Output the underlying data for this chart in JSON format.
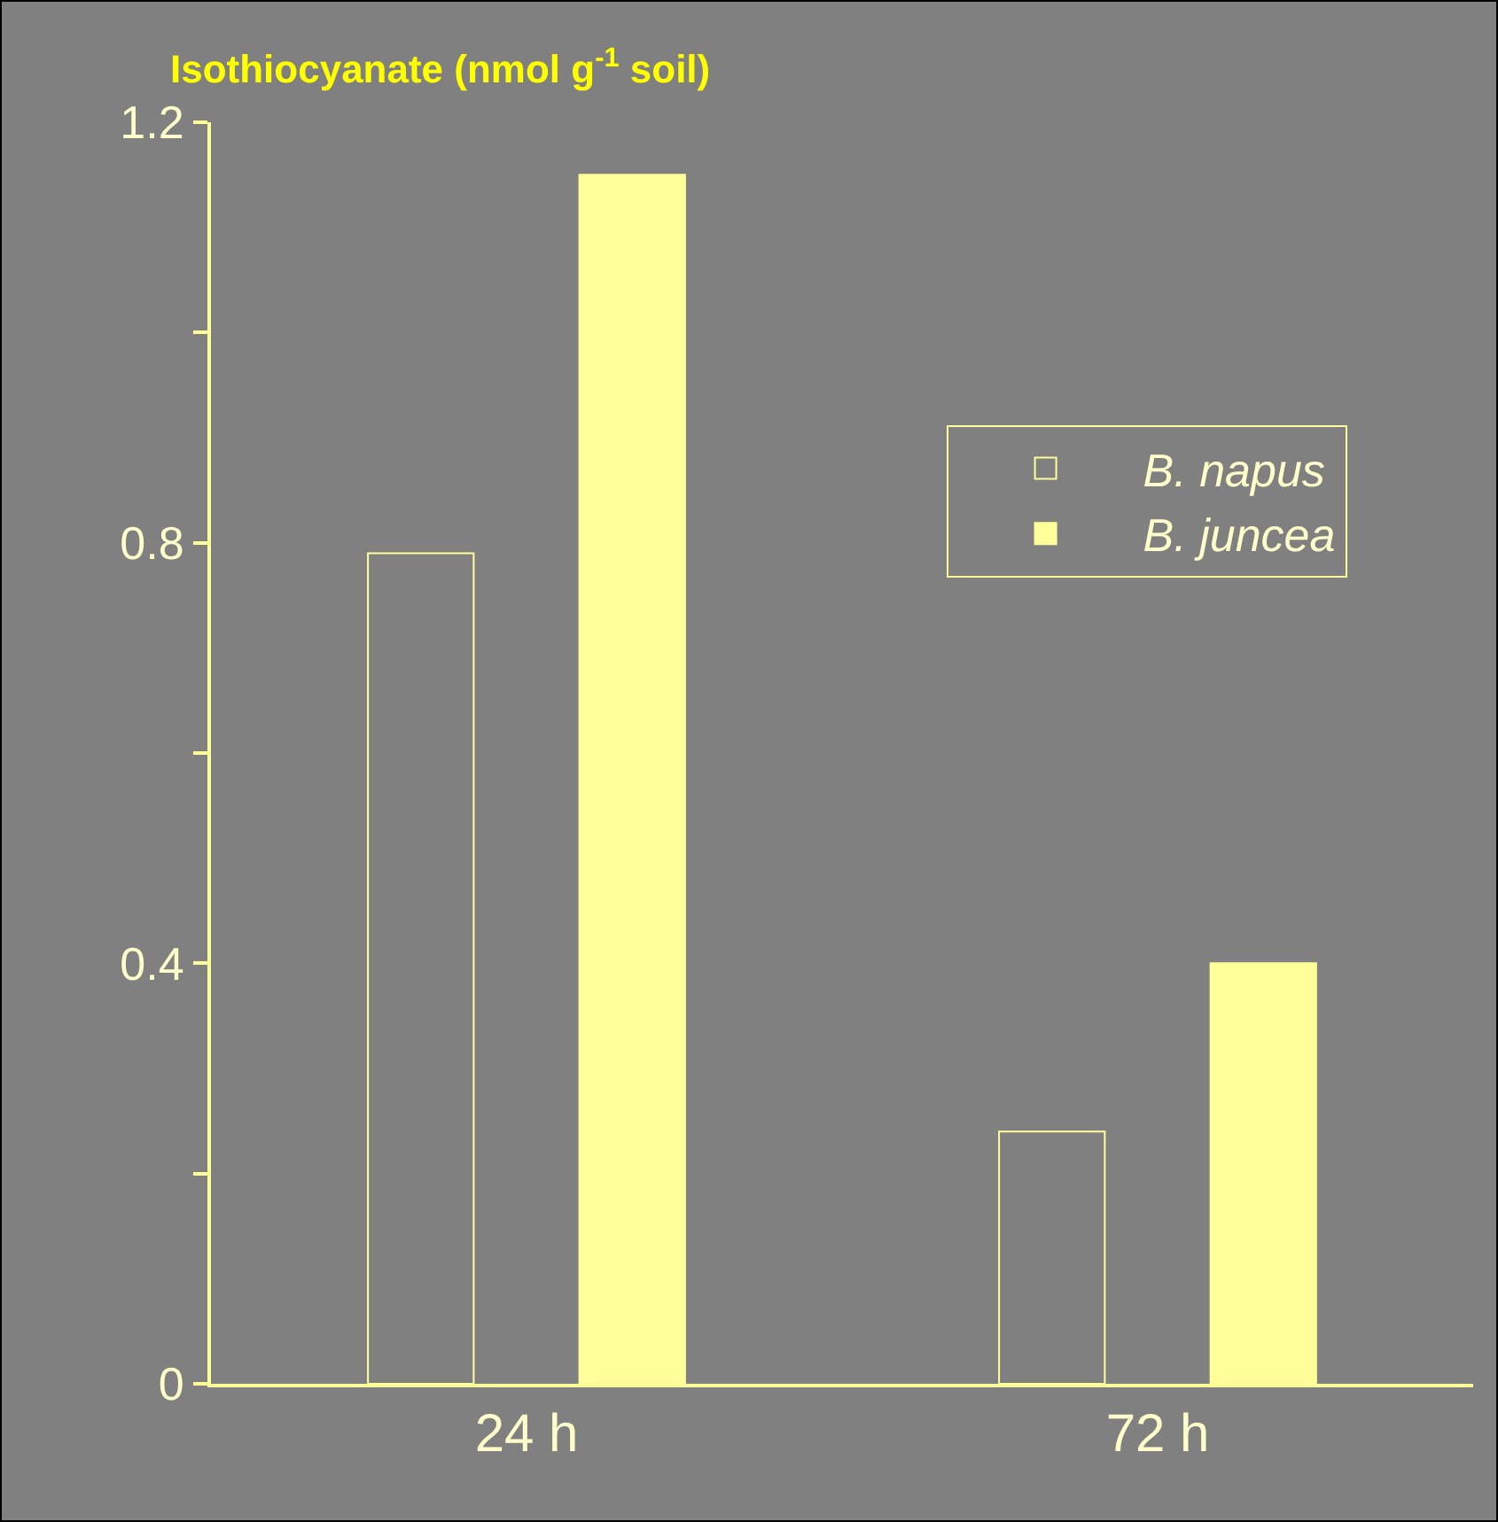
{
  "chart_data": {
    "type": "bar",
    "title": "Isothiocyanate (nmol g$^{-1}$ soil)",
    "categories": [
      "24 h",
      "72 h"
    ],
    "series": [
      {
        "name": "B. napus",
        "color": "#808080",
        "values": [
          0.79,
          0.24
        ]
      },
      {
        "name": "B. juncea",
        "color": "#ffff99",
        "values": [
          1.15,
          0.4
        ]
      }
    ],
    "ylim": [
      0,
      1.2
    ],
    "yticks": [
      0,
      {
        "value": 0.2,
        "label": null
      },
      0.4,
      {
        "value": 0.6,
        "label": null
      },
      0.8,
      {
        "value": 1.0,
        "label": null
      },
      1.2
    ],
    "legend": "top right"
  }
}
